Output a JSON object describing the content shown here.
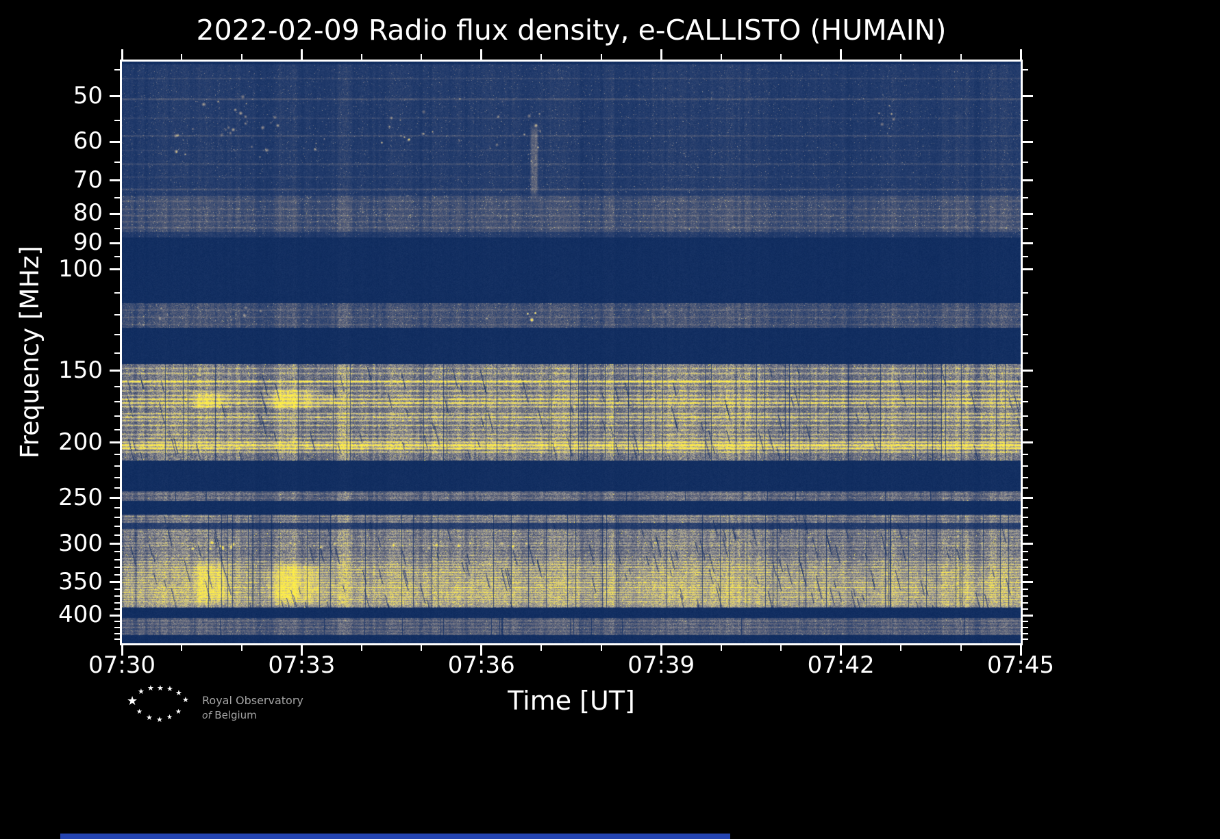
{
  "page": {
    "background": "#000000"
  },
  "chart_data": {
    "type": "heatmap",
    "title": "2022-02-09 Radio flux density, e-CALLISTO (HUMAIN)",
    "date": "2022-02-09",
    "network": "e-CALLISTO",
    "station": "HUMAIN",
    "xlabel": "Time [UT]",
    "ylabel": "Frequency [MHz]",
    "x_ticks": [
      "07:30",
      "07:33",
      "07:36",
      "07:39",
      "07:42",
      "07:45"
    ],
    "x_tick_minutes": [
      0,
      3,
      6,
      9,
      12,
      15
    ],
    "x_minor_minutes": [
      1,
      2,
      4,
      5,
      7,
      8,
      10,
      11,
      13,
      14
    ],
    "time_span_min": 15,
    "y_ticks": [
      50,
      60,
      70,
      80,
      90,
      100,
      150,
      200,
      250,
      300,
      350,
      400
    ],
    "y_minor_ticks": [
      45,
      55,
      65,
      75,
      85,
      95,
      110,
      120,
      130,
      140,
      160,
      170,
      180,
      190,
      210,
      220,
      230,
      240,
      260,
      270,
      280,
      290,
      310,
      320,
      330,
      340,
      360,
      370,
      380,
      390,
      410,
      420,
      430,
      440
    ],
    "y_scale": "log",
    "freq_range_mhz": [
      43.5,
      447
    ],
    "seed": 20220209,
    "colormap": [
      [
        0,
        10,
        40,
        92
      ],
      [
        0.15,
        38,
        62,
        110
      ],
      [
        0.35,
        96,
        101,
        122
      ],
      [
        0.55,
        152,
        150,
        150
      ],
      [
        0.72,
        203,
        192,
        135
      ],
      [
        0.88,
        242,
        222,
        92
      ],
      [
        1,
        255,
        238,
        70
      ]
    ],
    "layers": [
      {
        "type": "region",
        "f1": 44,
        "f2": 88,
        "base": 0.09,
        "speckle": 0.5
      },
      {
        "type": "hline",
        "f": 46.5,
        "w": 2,
        "level": 0.1
      },
      {
        "type": "hline",
        "f": 50.5,
        "w": 3,
        "level": 0.16
      },
      {
        "type": "hline",
        "f": 54.5,
        "w": 2,
        "level": 0.09
      },
      {
        "type": "hline",
        "f": 58.5,
        "w": 2.5,
        "level": 0.14
      },
      {
        "type": "hline",
        "f": 62,
        "w": 2,
        "level": 0.08
      },
      {
        "type": "hline",
        "f": 65.5,
        "w": 2.5,
        "level": 0.13
      },
      {
        "type": "hline",
        "f": 69,
        "w": 2,
        "level": 0.09
      },
      {
        "type": "hline",
        "f": 72.5,
        "w": 3,
        "level": 0.15
      },
      {
        "type": "region",
        "f1": 74.5,
        "f2": 86,
        "base": 0.1,
        "speckle": 0.6
      },
      {
        "type": "hline",
        "f": 76,
        "w": 2,
        "level": 0.11
      },
      {
        "type": "hline",
        "f": 78.5,
        "w": 2,
        "level": 0.12
      },
      {
        "type": "hline",
        "f": 80.5,
        "w": 2.5,
        "level": 0.14
      },
      {
        "type": "hline",
        "f": 82.5,
        "w": 2,
        "level": 0.11
      },
      {
        "type": "hline",
        "f": 84.5,
        "w": 2.5,
        "level": 0.13
      },
      {
        "type": "blobs",
        "t1": 0.8,
        "t2": 2.6,
        "f1": 50,
        "f2": 64,
        "count": 26,
        "level": 0.5,
        "rmax": 2.5
      },
      {
        "type": "blobs",
        "t1": 3.0,
        "t2": 3.4,
        "f1": 56,
        "f2": 63,
        "count": 6,
        "level": 0.45,
        "rmax": 2
      },
      {
        "type": "blobs",
        "t1": 4.3,
        "t2": 5.2,
        "f1": 52,
        "f2": 62,
        "count": 14,
        "level": 0.55,
        "rmax": 2.5
      },
      {
        "type": "blobs",
        "t1": 5.6,
        "t2": 6.4,
        "f1": 50,
        "f2": 62,
        "count": 10,
        "level": 0.4,
        "rmax": 2.2
      },
      {
        "type": "blobs",
        "t1": 6.7,
        "t2": 7.0,
        "f1": 53,
        "f2": 66,
        "count": 8,
        "level": 0.6,
        "rmax": 2.5
      },
      {
        "type": "blobs",
        "t1": 12.6,
        "t2": 12.95,
        "f1": 50,
        "f2": 57,
        "count": 6,
        "level": 0.5,
        "rmax": 2.2
      },
      {
        "type": "patch",
        "t1": 6.8,
        "t2": 6.95,
        "f1": 55,
        "f2": 76,
        "level": 0.3
      },
      {
        "type": "region",
        "f1": 114.5,
        "f2": 126.5,
        "base": 0.2,
        "speckle": 0.6
      },
      {
        "type": "hline",
        "f": 117.5,
        "w": 2,
        "level": 0.12
      },
      {
        "type": "hline",
        "f": 121,
        "w": 2,
        "level": 0.12
      },
      {
        "type": "hline",
        "f": 124.5,
        "w": 2,
        "level": 0.1
      },
      {
        "type": "blobs",
        "t1": 0.2,
        "t2": 2.4,
        "f1": 115.5,
        "f2": 125,
        "count": 12,
        "level": 0.35,
        "rmax": 2
      },
      {
        "type": "blobs",
        "t1": 6.75,
        "t2": 6.95,
        "f1": 118,
        "f2": 123,
        "count": 3,
        "level": 0.85,
        "rmax": 2.5
      },
      {
        "type": "blobs",
        "t1": 3.0,
        "t2": 13.5,
        "f1": 115.5,
        "f2": 125,
        "count": 14,
        "level": 0.25,
        "rmax": 1.8
      },
      {
        "type": "region",
        "f1": 146,
        "f2": 215,
        "base": 0.38,
        "speckle": 0.8
      },
      {
        "type": "hline",
        "f": 148.5,
        "w": 2.5,
        "level": 0.22
      },
      {
        "type": "hline",
        "f": 151.5,
        "w": 2.5,
        "level": 0.28
      },
      {
        "type": "hline",
        "f": 156.5,
        "w": 3.5,
        "level": 0.62
      },
      {
        "type": "hline",
        "f": 159,
        "w": 2,
        "level": 0.32
      },
      {
        "type": "hline",
        "f": 162.5,
        "w": 2.5,
        "level": 0.32
      },
      {
        "type": "hline",
        "f": 165.5,
        "w": 2.5,
        "level": 0.38
      },
      {
        "type": "hline",
        "f": 168,
        "w": 3,
        "level": 0.5
      },
      {
        "type": "hline",
        "f": 170.5,
        "w": 3,
        "level": 0.56
      },
      {
        "type": "hline",
        "f": 173,
        "w": 2.5,
        "level": 0.42
      },
      {
        "type": "hline",
        "f": 178,
        "w": 2.5,
        "level": 0.36
      },
      {
        "type": "hline",
        "f": 180.5,
        "w": 3,
        "level": 0.46
      },
      {
        "type": "hline",
        "f": 183,
        "w": 2.5,
        "level": 0.32
      },
      {
        "type": "hline",
        "f": 186.5,
        "w": 2.5,
        "level": 0.35
      },
      {
        "type": "hline",
        "f": 190,
        "w": 2,
        "level": 0.26
      },
      {
        "type": "hline",
        "f": 193.5,
        "w": 2.5,
        "level": 0.3
      },
      {
        "type": "hline",
        "f": 196.5,
        "w": 2.5,
        "level": 0.33
      },
      {
        "type": "hline",
        "f": 199.5,
        "w": 3,
        "level": 0.5
      },
      {
        "type": "hline",
        "f": 202,
        "w": 4,
        "level": 0.72
      },
      {
        "type": "hline",
        "f": 204.5,
        "w": 3.5,
        "level": 0.6
      },
      {
        "type": "hline",
        "f": 207.5,
        "w": 2.5,
        "level": 0.36
      },
      {
        "type": "patch",
        "t1": 1.1,
        "t2": 1.8,
        "f1": 162,
        "f2": 175,
        "level": 0.28
      },
      {
        "type": "patch",
        "t1": 2.3,
        "t2": 3.4,
        "f1": 160,
        "f2": 176,
        "level": 0.33
      },
      {
        "type": "patch",
        "t1": 3.3,
        "t2": 3.6,
        "f1": 165,
        "f2": 172,
        "level": 0.24
      },
      {
        "type": "slashes",
        "f1": 147,
        "f2": 214,
        "count": 95,
        "slope": 4
      },
      {
        "type": "vdrops",
        "f1": 146,
        "f2": 215,
        "count": 45
      },
      {
        "type": "region",
        "f1": 243.5,
        "f2": 252.5,
        "base": 0.28,
        "speckle": 0.5
      },
      {
        "type": "hline",
        "f": 245.5,
        "w": 2,
        "level": 0.16
      },
      {
        "type": "hline",
        "f": 249.5,
        "w": 2,
        "level": 0.13
      },
      {
        "type": "vdrops",
        "f1": 243.5,
        "f2": 252.5,
        "count": 14
      },
      {
        "type": "region",
        "f1": 267,
        "f2": 276,
        "base": 0.3,
        "speckle": 0.6
      },
      {
        "type": "region",
        "f1": 276,
        "f2": 283,
        "base": 0.1,
        "speckle": 0.3
      },
      {
        "type": "region",
        "f1": 283,
        "f2": 388,
        "base": 0.34,
        "speckle": 0.8
      },
      {
        "type": "hline",
        "f": 268.5,
        "w": 2.5,
        "level": 0.2
      },
      {
        "type": "hline",
        "f": 271.5,
        "w": 2.5,
        "level": 0.17
      },
      {
        "type": "hline",
        "f": 274.5,
        "w": 2,
        "level": 0.14
      },
      {
        "type": "hline",
        "f": 285,
        "w": 2.5,
        "level": 0.18
      },
      {
        "type": "hline",
        "f": 288,
        "w": 2,
        "level": 0.15
      },
      {
        "type": "hline",
        "f": 291.5,
        "w": 2.5,
        "level": 0.18
      },
      {
        "type": "hline",
        "f": 295,
        "w": 2,
        "level": 0.15
      },
      {
        "type": "hline",
        "f": 299,
        "w": 2.5,
        "level": 0.22
      },
      {
        "type": "hline",
        "f": 302,
        "w": 2.5,
        "level": 0.24
      },
      {
        "type": "hline",
        "f": 306,
        "w": 2,
        "level": 0.17
      },
      {
        "type": "hline",
        "f": 310,
        "w": 2,
        "level": 0.15
      },
      {
        "type": "hline",
        "f": 314,
        "w": 2.5,
        "level": 0.19
      },
      {
        "type": "hline",
        "f": 318,
        "w": 2.5,
        "level": 0.26
      },
      {
        "type": "hline",
        "f": 322,
        "w": 2.5,
        "level": 0.32
      },
      {
        "type": "hline",
        "f": 325.5,
        "w": 2.5,
        "level": 0.38
      },
      {
        "type": "hline",
        "f": 329,
        "w": 3,
        "level": 0.42
      },
      {
        "type": "hline",
        "f": 332.5,
        "w": 2.5,
        "level": 0.38
      },
      {
        "type": "hline",
        "f": 336,
        "w": 3,
        "level": 0.44
      },
      {
        "type": "hline",
        "f": 339.5,
        "w": 2.5,
        "level": 0.4
      },
      {
        "type": "hline",
        "f": 343,
        "w": 3,
        "level": 0.47
      },
      {
        "type": "hline",
        "f": 346.5,
        "w": 2.5,
        "level": 0.42
      },
      {
        "type": "hline",
        "f": 350,
        "w": 3,
        "level": 0.5
      },
      {
        "type": "hline",
        "f": 353.5,
        "w": 2.5,
        "level": 0.44
      },
      {
        "type": "hline",
        "f": 357,
        "w": 3,
        "level": 0.5
      },
      {
        "type": "hline",
        "f": 360.5,
        "w": 2.5,
        "level": 0.44
      },
      {
        "type": "hline",
        "f": 364,
        "w": 3,
        "level": 0.5
      },
      {
        "type": "hline",
        "f": 367.5,
        "w": 2.5,
        "level": 0.44
      },
      {
        "type": "hline",
        "f": 371,
        "w": 3,
        "level": 0.47
      },
      {
        "type": "hline",
        "f": 374.5,
        "w": 2.5,
        "level": 0.42
      },
      {
        "type": "hline",
        "f": 378,
        "w": 3,
        "level": 0.44
      },
      {
        "type": "hline",
        "f": 381.5,
        "w": 2.5,
        "level": 0.38
      },
      {
        "type": "hline",
        "f": 384.5,
        "w": 2,
        "level": 0.28
      },
      {
        "type": "blobs",
        "t1": 1.1,
        "t2": 1.9,
        "f1": 298,
        "f2": 306,
        "count": 12,
        "level": 0.5,
        "rmax": 2.5
      },
      {
        "type": "blobs",
        "t1": 2.8,
        "t2": 3.6,
        "f1": 298,
        "f2": 306,
        "count": 8,
        "level": 0.45,
        "rmax": 2.2
      },
      {
        "type": "blobs",
        "t1": 4.0,
        "t2": 7.2,
        "f1": 298,
        "f2": 305,
        "count": 14,
        "level": 0.4,
        "rmax": 2
      },
      {
        "type": "patch",
        "t1": 1.15,
        "t2": 1.85,
        "f1": 320,
        "f2": 382,
        "level": 0.28
      },
      {
        "type": "patch",
        "t1": 2.35,
        "t2": 3.45,
        "f1": 322,
        "f2": 384,
        "level": 0.33
      },
      {
        "type": "slashes",
        "f1": 268,
        "f2": 387,
        "count": 135,
        "slope": 4
      },
      {
        "type": "vdrops",
        "f1": 267,
        "f2": 388,
        "count": 55
      },
      {
        "type": "region",
        "f1": 404,
        "f2": 432,
        "base": 0.22,
        "speckle": 0.5
      },
      {
        "type": "hline",
        "f": 408,
        "w": 2.5,
        "level": 0.16
      },
      {
        "type": "hline",
        "f": 413,
        "w": 2,
        "level": 0.13
      },
      {
        "type": "hline",
        "f": 419,
        "w": 2.5,
        "level": 0.16
      },
      {
        "type": "hline",
        "f": 425,
        "w": 2,
        "level": 0.13
      },
      {
        "type": "hline",
        "f": 429.5,
        "w": 2,
        "level": 0.1
      },
      {
        "type": "vdrops",
        "f1": 404,
        "f2": 432,
        "count": 20
      }
    ]
  },
  "footer": {
    "logo_line1": "Royal Observatory",
    "logo_line2_of": "of",
    "logo_line2_rest": "Belgium"
  }
}
